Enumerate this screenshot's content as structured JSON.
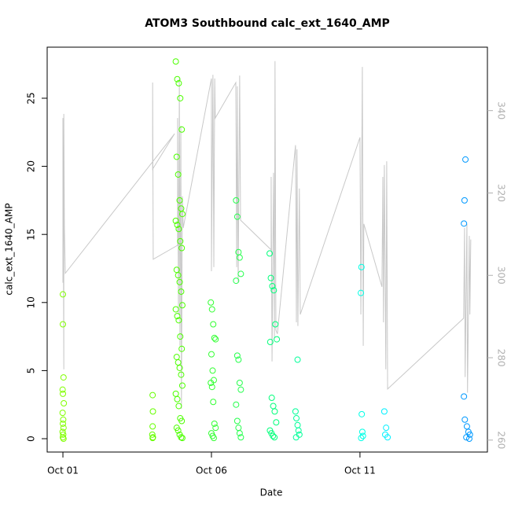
{
  "chart_data": {
    "type": "scatter",
    "title": "ATOM3 Southbound calc_ext_1640_AMP",
    "x_label": "Date",
    "y_label": "calc_ext_1640_AMP",
    "xlim": [
      0.47,
      15.29
    ],
    "xticks": [
      {
        "value": 1,
        "label": "Oct 01"
      },
      {
        "value": 6,
        "label": "Oct 06"
      },
      {
        "value": 11,
        "label": "Oct 11"
      }
    ],
    "ylim": [
      -0.98,
      28.75
    ],
    "yticks": [
      0,
      5,
      10,
      15,
      20,
      25
    ],
    "y2lim": [
      257.1,
      355.4
    ],
    "y2ticks": [
      260,
      280,
      300,
      320,
      340
    ],
    "series": [
      {
        "type": "line",
        "axis": "y2",
        "color": "#c8c8c8",
        "x": [
          1.0,
          1.0,
          1.03,
          1.03,
          1.05,
          1.08,
          4.76,
          4.02,
          4.02,
          4.04,
          4.86,
          4.86,
          4.89,
          4.92,
          4.94,
          4.97,
          4.99,
          5.02,
          5.05,
          6.0,
          6.0,
          6.05,
          6.08,
          6.11,
          6.13,
          6.82,
          6.85,
          6.87,
          6.9,
          6.95,
          6.98,
          8.01,
          8.01,
          8.04,
          8.09,
          8.12,
          8.14,
          8.17,
          8.22,
          8.83,
          8.86,
          8.88,
          8.91,
          8.96,
          8.99,
          11.0,
          11.03,
          11.08,
          11.11,
          11.13,
          11.74,
          11.77,
          11.79,
          11.82,
          11.87,
          11.9,
          11.93,
          14.49,
          14.52,
          14.54,
          14.6,
          14.62,
          14.68,
          14.7,
          14.73
        ],
        "values": [
          298.2,
          338.2,
          277.2,
          339.2,
          311.5,
          300.5,
          334.4,
          325.8,
          346.8,
          303.9,
          307.3,
          338.2,
          290.5,
          347.8,
          282.9,
          336.3,
          267.6,
          319.2,
          311.5,
          347.8,
          301.0,
          348.7,
          302.0,
          347.8,
          338.2,
          346.8,
          302.0,
          345.9,
          298.2,
          348.5,
          313.4,
          306.2,
          323.9,
          279.1,
          324.9,
          284.8,
          352.0,
          286.7,
          285.8,
          331.6,
          288.6,
          330.6,
          287.7,
          321.1,
          290.5,
          333.5,
          290.5,
          350.6,
          282.9,
          312.5,
          297.2,
          323.9,
          288.6,
          326.8,
          277.2,
          327.7,
          272.4,
          289.6,
          311.5,
          275.3,
          312.5,
          271.5,
          309.6,
          290.5,
          308.7
        ]
      },
      {
        "type": "scatter",
        "color": "#80ff00",
        "x": [
          1.0,
          1.0,
          1.02,
          0.99,
          1.0,
          1.03,
          0.99,
          1.01,
          1.0,
          1.02,
          0.99,
          1.01,
          1.0,
          1.02
        ],
        "values": [
          10.6,
          8.4,
          4.5,
          3.6,
          3.3,
          2.6,
          1.9,
          1.4,
          1.1,
          0.8,
          0.5,
          0.3,
          0.1,
          0.0
        ]
      },
      {
        "type": "scatter",
        "color": "#66ff00",
        "x": [
          4.02,
          4.03,
          4.02,
          4.01,
          4.03,
          4.02
        ],
        "values": [
          3.2,
          2.0,
          0.9,
          0.3,
          0.1,
          0.05
        ]
      },
      {
        "type": "scatter",
        "color": "#4cff00",
        "x": [
          4.8,
          4.85,
          4.9,
          4.95,
          5.0,
          4.83,
          4.88,
          4.93,
          4.98,
          5.02,
          4.8,
          4.85,
          4.9,
          4.95,
          5.0,
          4.83,
          4.88,
          4.93,
          4.98,
          5.02,
          4.8,
          4.85,
          4.9,
          4.95,
          5.0,
          4.83,
          4.88,
          4.93,
          4.98,
          5.02,
          4.8,
          4.85,
          4.9,
          4.95,
          5.0,
          4.83,
          4.88,
          4.93,
          4.98,
          5.02
        ],
        "values": [
          27.7,
          26.4,
          26.1,
          25.0,
          22.7,
          20.7,
          19.4,
          17.5,
          16.9,
          16.5,
          16.0,
          15.7,
          15.4,
          14.5,
          14.0,
          12.4,
          12.0,
          11.5,
          10.8,
          9.8,
          9.5,
          9.0,
          8.7,
          7.5,
          6.6,
          6.0,
          5.6,
          5.2,
          4.7,
          3.9,
          3.3,
          2.9,
          2.4,
          1.5,
          1.3,
          0.8,
          0.6,
          0.3,
          0.1,
          0.05
        ]
      },
      {
        "type": "scatter",
        "color": "#33ff33",
        "x": [
          5.98,
          6.02,
          6.06,
          6.1,
          6.14,
          6.0,
          6.04,
          6.08,
          5.98,
          6.02,
          6.06,
          6.1,
          6.14,
          6.0,
          6.04,
          6.08
        ],
        "values": [
          10.0,
          9.5,
          8.4,
          7.4,
          7.3,
          6.2,
          5.0,
          4.3,
          4.1,
          3.8,
          2.7,
          1.1,
          0.8,
          0.4,
          0.2,
          0.05
        ]
      },
      {
        "type": "scatter",
        "color": "#26ff4d",
        "x": [
          6.83,
          6.87,
          6.91,
          6.95,
          6.99,
          6.83,
          6.87,
          6.91,
          6.95,
          6.99,
          6.83,
          6.87,
          6.91,
          6.95,
          6.99
        ],
        "values": [
          17.5,
          16.3,
          13.7,
          13.3,
          12.1,
          11.6,
          6.1,
          5.8,
          4.1,
          3.6,
          2.5,
          1.3,
          0.8,
          0.4,
          0.1
        ]
      },
      {
        "type": "scatter",
        "color": "#00ff7a",
        "x": [
          7.96,
          8.0,
          8.05,
          8.1,
          8.15,
          8.2,
          7.98,
          8.03,
          8.08,
          8.13,
          8.18,
          7.97,
          8.02,
          8.07,
          8.12
        ],
        "values": [
          13.6,
          11.8,
          11.2,
          10.9,
          8.4,
          7.3,
          7.1,
          3.0,
          2.4,
          2.0,
          1.2,
          0.6,
          0.4,
          0.2,
          0.1
        ]
      },
      {
        "type": "scatter",
        "color": "#00ff99",
        "x": [
          8.9,
          8.83,
          8.86,
          8.9,
          8.93,
          8.96,
          8.85
        ],
        "values": [
          5.8,
          2.0,
          1.5,
          1.0,
          0.6,
          0.3,
          0.1
        ]
      },
      {
        "type": "scatter",
        "color": "#00ffe6",
        "x": [
          11.05,
          11.03,
          11.06,
          11.08,
          11.1,
          11.04
        ],
        "values": [
          12.6,
          10.7,
          1.8,
          0.5,
          0.2,
          0.05
        ]
      },
      {
        "type": "scatter",
        "color": "#00f0ff",
        "x": [
          11.82,
          11.88,
          11.85,
          11.93
        ],
        "values": [
          2.0,
          0.8,
          0.3,
          0.1
        ]
      },
      {
        "type": "scatter",
        "color": "#0099ff",
        "x": [
          14.55,
          14.52,
          14.5,
          14.5,
          14.53,
          14.6,
          14.65,
          14.7,
          14.58,
          14.68
        ],
        "values": [
          20.5,
          17.5,
          15.8,
          3.1,
          1.4,
          0.9,
          0.5,
          0.3,
          0.1,
          0.0
        ]
      }
    ]
  }
}
